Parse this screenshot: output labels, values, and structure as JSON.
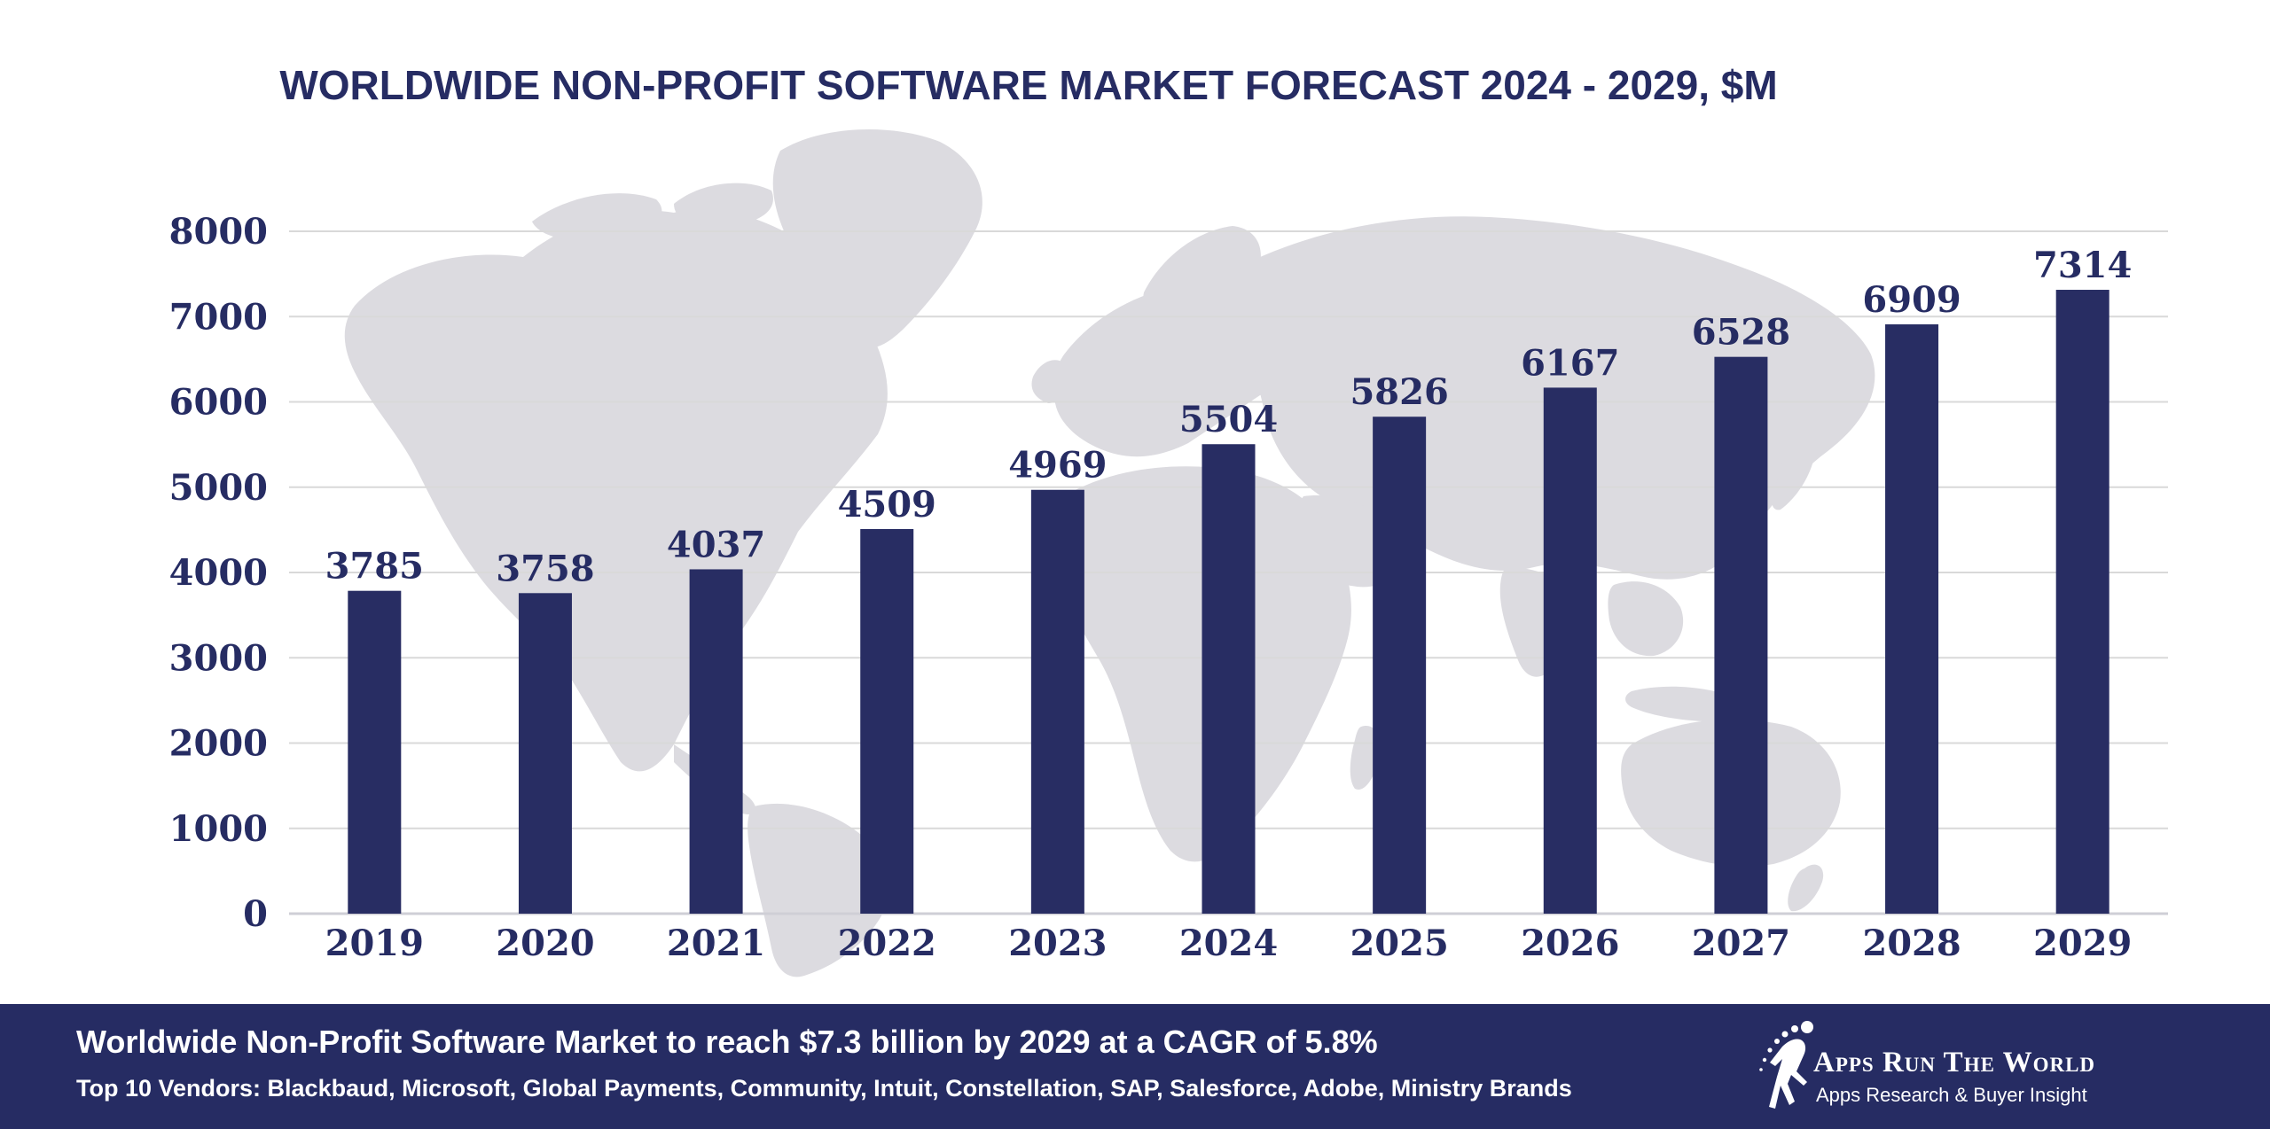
{
  "chart_data": {
    "type": "bar",
    "title": "WORLDWIDE NON-PROFIT SOFTWARE MARKET FORECAST 2024 - 2029, $M",
    "xlabel": "",
    "ylabel": "",
    "categories": [
      "2019",
      "2020",
      "2021",
      "2022",
      "2023",
      "2024",
      "2025",
      "2026",
      "2027",
      "2028",
      "2029"
    ],
    "values": [
      3785,
      3758,
      4037,
      4509,
      4969,
      5504,
      5826,
      6167,
      6528,
      6909,
      7314
    ],
    "ylim": [
      0,
      8000
    ],
    "yticks": [
      0,
      1000,
      2000,
      3000,
      4000,
      5000,
      6000,
      7000,
      8000
    ],
    "grid": true,
    "data_labels": true,
    "bar_color": "#282d63",
    "grid_color": "#d9d9d9",
    "background_map_color": "#dcdbe0"
  },
  "footer": {
    "headline": "Worldwide Non-Profit Software Market to reach $7.3 billion by 2029 at a CAGR of 5.8%",
    "vendors": "Top 10 Vendors: Blackbaud, Microsoft, Global Payments, Community, Intuit, Constellation, SAP, Salesforce, Adobe, Ministry Brands",
    "background_color": "#262c63"
  },
  "brand": {
    "name": "Apps Run The World",
    "tagline": "Apps Research & Buyer Insight",
    "logo_icon": "running-figure-icon"
  }
}
